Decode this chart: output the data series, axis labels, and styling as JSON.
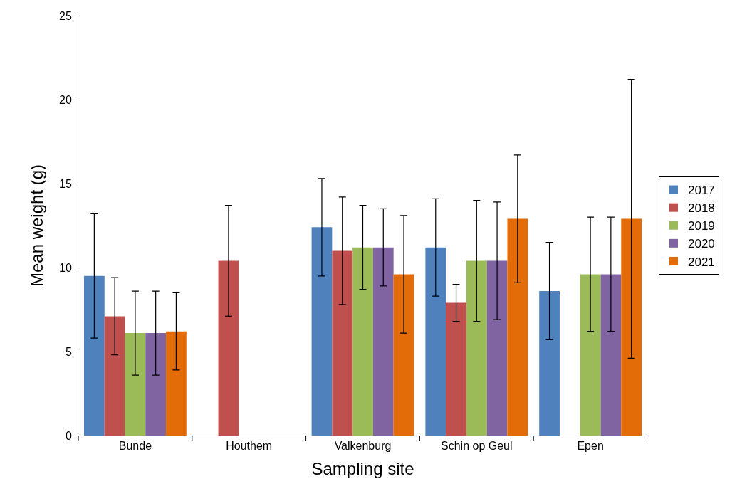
{
  "chart_data": {
    "type": "bar",
    "xlabel": "Sampling site",
    "ylabel": "Mean weight (g)",
    "categories": [
      "Bunde",
      "Houthem",
      "Valkenburg",
      "Schin op Geul",
      "Epen"
    ],
    "series": [
      {
        "name": "2017",
        "color": "#4f81bd",
        "values": [
          9.5,
          null,
          12.4,
          11.2,
          8.6
        ],
        "errors": [
          3.7,
          null,
          2.9,
          2.9,
          2.9
        ]
      },
      {
        "name": "2018",
        "color": "#c0504d",
        "values": [
          7.1,
          10.4,
          11.0,
          7.9,
          null
        ],
        "errors": [
          2.3,
          3.3,
          3.2,
          1.1,
          null
        ]
      },
      {
        "name": "2019",
        "color": "#9bbb59",
        "values": [
          6.1,
          null,
          11.2,
          10.4,
          9.6
        ],
        "errors": [
          2.5,
          null,
          2.5,
          3.6,
          3.4
        ]
      },
      {
        "name": "2020",
        "color": "#8064a2",
        "values": [
          6.1,
          null,
          11.2,
          10.4,
          9.6
        ],
        "errors": [
          2.5,
          null,
          2.3,
          3.5,
          3.4
        ]
      },
      {
        "name": "2021",
        "color": "#e36c09",
        "values": [
          6.2,
          null,
          9.6,
          12.9,
          12.9
        ],
        "errors": [
          2.3,
          null,
          3.5,
          3.8,
          8.3
        ]
      }
    ],
    "ylim": [
      0,
      25
    ],
    "yticks": [
      0,
      5,
      10,
      15,
      20,
      25
    ],
    "legend": "right"
  }
}
